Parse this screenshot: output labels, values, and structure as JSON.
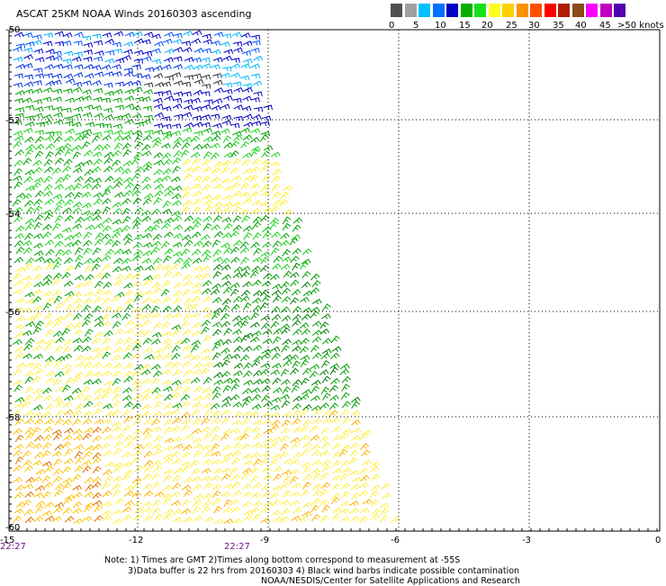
{
  "title": "ASCAT 25KM NOAA Winds 20160303 ascending",
  "legend": {
    "labels": [
      "0",
      "5",
      "10",
      "15",
      "20",
      "25",
      "30",
      "35",
      "40",
      "45",
      ">50 knots"
    ],
    "colors": [
      "#505050",
      "#a0a0a0",
      "#00c0ff",
      "#0070ff",
      "#0000c0",
      "#00b000",
      "#18e018",
      "#ffff20",
      "#ffd000",
      "#ff9000",
      "#ff5000",
      "#ff0000",
      "#b02000",
      "#8a4a1a",
      "#ff00ff",
      "#c000c0",
      "#5000b0"
    ]
  },
  "axes": {
    "y_labels": [
      "-50",
      "-52",
      "-54",
      "-56",
      "-58",
      "-60"
    ],
    "x_labels": [
      "-15",
      "-12",
      "-9",
      "-6",
      "-3",
      "0"
    ],
    "time_labels": [
      "22:27",
      "22:27"
    ]
  },
  "notes": {
    "line1": "Note: 1) Times are GMT 2)Times along bottom correspond to measurement at -55S",
    "line2": "3)Data buffer is 22 hrs from 20160303 4) Black wind barbs indicate possible contamination",
    "line3": "NOAA/NESDIS/Center for Satellite Applications and Research"
  }
}
